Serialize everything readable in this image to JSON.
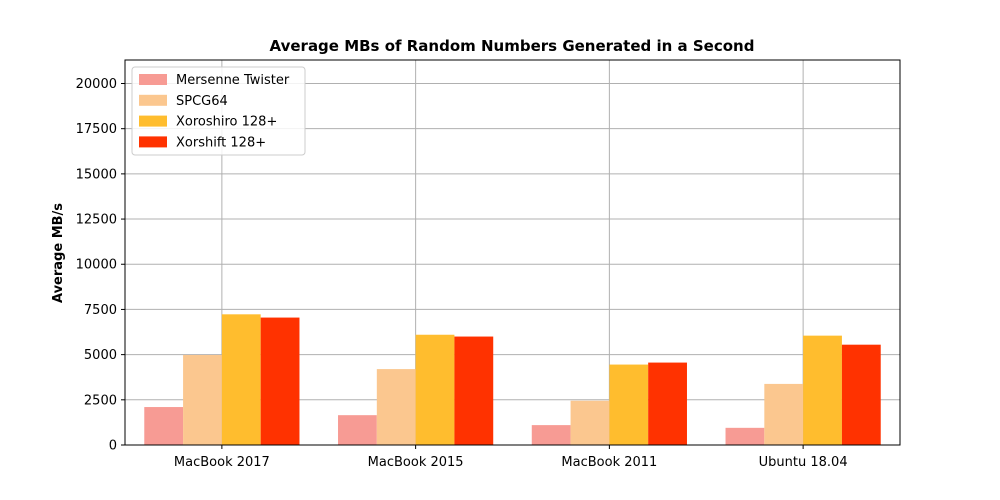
{
  "chart_data": {
    "type": "bar",
    "title": "Average MBs of Random Numbers Generated in a Second",
    "xlabel": "",
    "ylabel": "Average MB/s",
    "categories": [
      "MacBook 2017",
      "MacBook 2015",
      "MacBook 2011",
      "Ubuntu 18.04"
    ],
    "series": [
      {
        "name": "Mersenne Twister",
        "color": "#f79b94",
        "values": [
          2100,
          1650,
          1100,
          950
        ]
      },
      {
        "name": "SPCG64",
        "color": "#fbc78f",
        "values": [
          4980,
          4200,
          2450,
          3380
        ]
      },
      {
        "name": "Xoroshiro 128+",
        "color": "#ffbd2e",
        "values": [
          7230,
          6100,
          4450,
          6050
        ]
      },
      {
        "name": "Xorshift 128+",
        "color": "#ff3200",
        "values": [
          7050,
          6000,
          4560,
          5550
        ]
      }
    ],
    "ylim": [
      0,
      21300
    ],
    "yticks": [
      0,
      2500,
      5000,
      7500,
      10000,
      12500,
      15000,
      17500,
      20000
    ],
    "grid": true,
    "legend_position": "top-left"
  }
}
